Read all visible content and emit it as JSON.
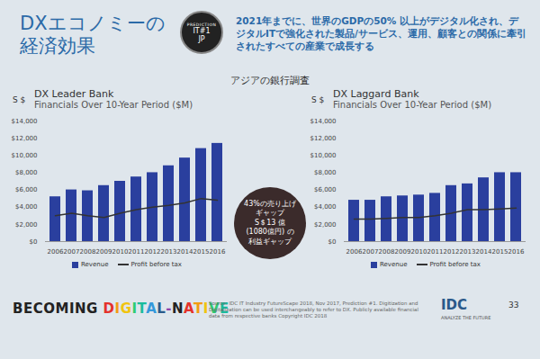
{
  "slide": {
    "title_lines": [
      "DXエコノミーの",
      "経済効果"
    ],
    "badge": [
      "IT#1",
      "JP"
    ],
    "badge_ring": "PREDICTION",
    "heading": "2021年までに、世界のGDPの50% 以上がデジタル化され、デジタルITで強化された製品/サービス、運用、顧客との関係に牽引されたすべての産業で成長する",
    "survey": "アジアの銀行調査",
    "callout_lines": [
      "43%の売り上げ",
      "ギャップ",
      "S＄13 億",
      "(1080億円) の",
      "利益ギャップ"
    ],
    "footer": "BECOMING DIGITAL-NATIVE",
    "source": "Source: IDC IT Industry FutureScape 2018, Nov 2017, Prediction #1. Digitization and Digitalization can be used interchangeably to refer to DX. Publicly available financial data from respective banks Copyright IDC 2018",
    "logo": "IDC",
    "logo_tagline": "ANALYZE THE FUTURE",
    "page": "33"
  },
  "chart_data": [
    {
      "type": "bar",
      "title": "DX Leader Bank",
      "subtitle": "Financials Over 10-Year Period ($M)",
      "y_label": "S $",
      "categories": [
        "2006",
        "2007",
        "2008",
        "2009",
        "2010",
        "2011",
        "2012",
        "2013",
        "2014",
        "2015",
        "2016"
      ],
      "series": [
        {
          "name": "Revenue",
          "type": "bar",
          "color": "#2a3f9e",
          "values": [
            5200,
            6000,
            5900,
            6500,
            7000,
            7500,
            8000,
            8800,
            9700,
            10800,
            11400
          ]
        },
        {
          "name": "Profit before tax",
          "type": "line",
          "color": "#333333",
          "values": [
            3000,
            3300,
            3000,
            2800,
            3300,
            3700,
            4000,
            4200,
            4500,
            5000,
            4800
          ]
        }
      ],
      "ylim": [
        0,
        14000
      ],
      "yticks": [
        {
          "value": 0,
          "label": "$0"
        },
        {
          "value": 2000,
          "label": "$2,000"
        },
        {
          "value": 4000,
          "label": "$4,000"
        },
        {
          "value": 6000,
          "label": "$6,000"
        },
        {
          "value": 8000,
          "label": "$8,000"
        },
        {
          "value": 10000,
          "label": "$10,000"
        },
        {
          "value": 12000,
          "label": "$12,000"
        },
        {
          "value": 14000,
          "label": "$14,000"
        }
      ],
      "grid": false,
      "legend": "bottom"
    },
    {
      "type": "bar",
      "title": "DX Laggard Bank",
      "subtitle": "Financials Over 10-Year Period ($M)",
      "y_label": "S $",
      "categories": [
        "2006",
        "2007",
        "2008",
        "2009",
        "2010",
        "2011",
        "2012",
        "2013",
        "2014",
        "2015",
        "2016"
      ],
      "series": [
        {
          "name": "Revenue",
          "type": "bar",
          "color": "#2a3f9e",
          "values": [
            4800,
            4800,
            5200,
            5300,
            5400,
            5600,
            6500,
            6700,
            7400,
            8000,
            8000
          ]
        },
        {
          "name": "Profit before tax",
          "type": "line",
          "color": "#333333",
          "values": [
            2600,
            2600,
            2700,
            2800,
            2800,
            3000,
            3300,
            3700,
            3700,
            3800,
            3900
          ]
        }
      ],
      "ylim": [
        0,
        14000
      ],
      "yticks": [
        {
          "value": 0,
          "label": "$0"
        },
        {
          "value": 2000,
          "label": "$2,000"
        },
        {
          "value": 4000,
          "label": "$4,000"
        },
        {
          "value": 6000,
          "label": "$6,000"
        },
        {
          "value": 8000,
          "label": "$8,000"
        },
        {
          "value": 10000,
          "label": "$10,000"
        },
        {
          "value": 12000,
          "label": "$12,000"
        },
        {
          "value": 14000,
          "label": "$14,000"
        }
      ],
      "grid": false,
      "legend": "bottom"
    }
  ]
}
